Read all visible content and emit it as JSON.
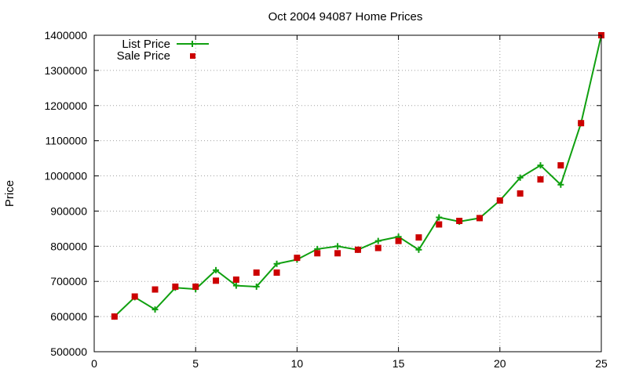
{
  "chart_data": {
    "type": "line",
    "title": "Oct 2004 94087 Home Prices",
    "xlabel": "",
    "ylabel": "Price",
    "xlim": [
      0,
      25
    ],
    "ylim": [
      500000,
      1400000
    ],
    "xticks": [
      0,
      5,
      10,
      15,
      20,
      25
    ],
    "yticks": [
      500000,
      600000,
      700000,
      800000,
      900000,
      1000000,
      1100000,
      1200000,
      1300000,
      1400000
    ],
    "grid": true,
    "legend_position": "top-left",
    "x": [
      1,
      2,
      3,
      4,
      5,
      6,
      7,
      8,
      9,
      10,
      11,
      12,
      13,
      14,
      15,
      16,
      17,
      18,
      19,
      20,
      21,
      22,
      23,
      24,
      25
    ],
    "series": [
      {
        "name": "List Price",
        "style": "line-with-plus-markers",
        "color": "#10a010",
        "values": [
          600000,
          655000,
          620000,
          682000,
          678000,
          732000,
          688000,
          685000,
          750000,
          762000,
          792000,
          800000,
          790000,
          815000,
          827000,
          790000,
          882000,
          870000,
          880000,
          930000,
          995000,
          1030000,
          975000,
          1150000,
          1400000
        ]
      },
      {
        "name": "Sale Price",
        "style": "square-markers",
        "color": "#cc0000",
        "values": [
          600000,
          657000,
          677000,
          685000,
          685000,
          702000,
          705000,
          725000,
          725000,
          767000,
          780000,
          780000,
          790000,
          795000,
          815000,
          825000,
          862000,
          872000,
          880000,
          930000,
          950000,
          990000,
          1030000,
          1150000,
          1400000
        ]
      }
    ]
  }
}
